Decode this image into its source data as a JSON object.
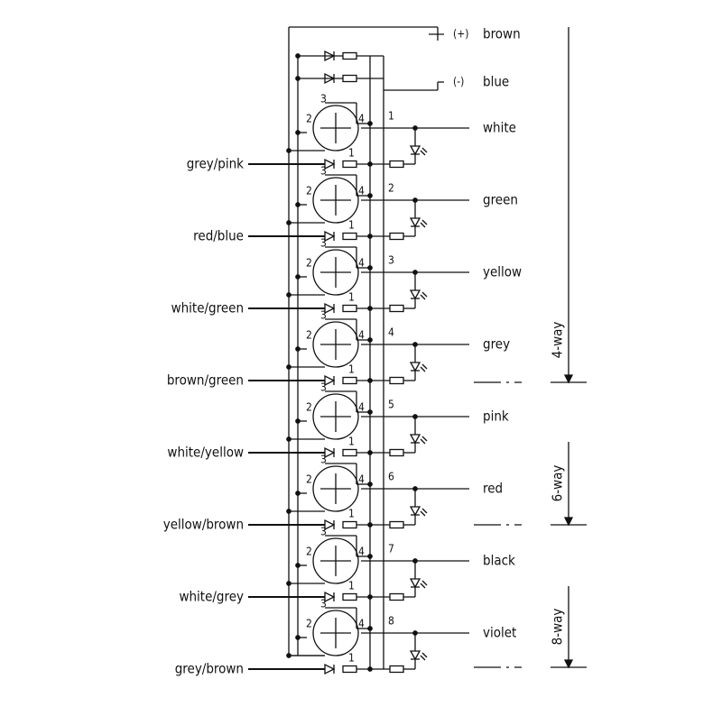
{
  "supply": [
    {
      "sign": "(+)",
      "color": "brown"
    },
    {
      "sign": "(-)",
      "color": "blue"
    }
  ],
  "pins": {
    "top": "3",
    "left": "2",
    "right": "4",
    "bottom": "1"
  },
  "ports": [
    {
      "number": "1",
      "output": "white",
      "input": "grey/pink"
    },
    {
      "number": "2",
      "output": "green",
      "input": "red/blue"
    },
    {
      "number": "3",
      "output": "yellow",
      "input": "white/green"
    },
    {
      "number": "4",
      "output": "grey",
      "input": "brown/green"
    },
    {
      "number": "5",
      "output": "pink",
      "input": "white/yellow"
    },
    {
      "number": "6",
      "output": "red",
      "input": "yellow/brown"
    },
    {
      "number": "7",
      "output": "black",
      "input": "white/grey"
    },
    {
      "number": "8",
      "output": "violet",
      "input": "grey/brown"
    }
  ],
  "variants": [
    "4-way",
    "6-way",
    "8-way"
  ]
}
